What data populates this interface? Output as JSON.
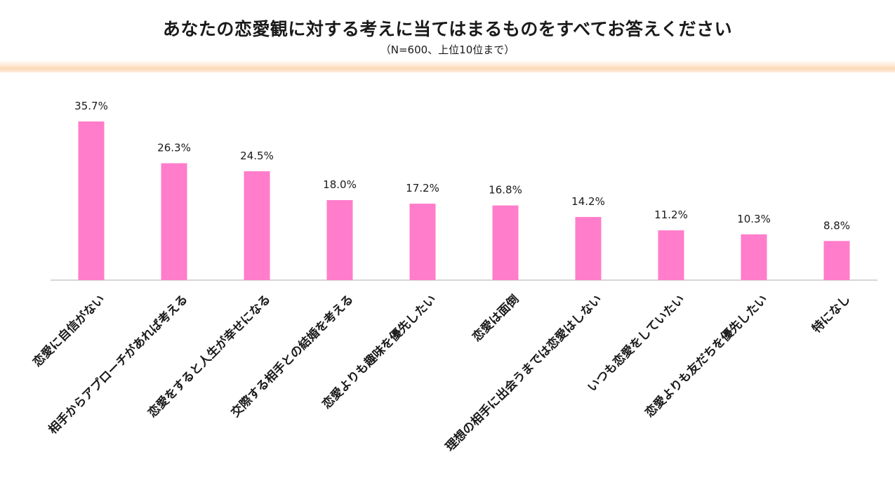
{
  "title": "あなたの恋愛観に対する考えに当てはまるものをすべてお答えください",
  "subtitle": "（N=600、上位10位まで）",
  "colors": {
    "bar": "#ff7dcb",
    "header_band": "#fbd9b8",
    "axis": "#c8c8c8"
  },
  "chart_data": {
    "type": "bar",
    "categories": [
      "恋愛に自信がない",
      "相手からアプローチがあれば考える",
      "恋愛をすると人生が幸せになる",
      "交際する相手との結婚を考える",
      "恋愛よりも趣味を優先したい",
      "恋愛は面倒",
      "理想の相手に出会うまでは恋愛はしない",
      "いつも恋愛をしていたい",
      "恋愛よりも友だちを優先したい",
      "特になし"
    ],
    "values": [
      35.7,
      26.3,
      24.5,
      18.0,
      17.2,
      16.8,
      14.2,
      11.2,
      10.3,
      8.8
    ],
    "value_labels": [
      "35.7%",
      "26.3%",
      "24.5%",
      "18.0%",
      "17.2%",
      "16.8%",
      "14.2%",
      "11.2%",
      "10.3%",
      "8.8%"
    ],
    "unit": "%",
    "ylim": [
      0,
      40
    ],
    "grid": false,
    "legend": "none",
    "xlabel": "",
    "ylabel": ""
  }
}
